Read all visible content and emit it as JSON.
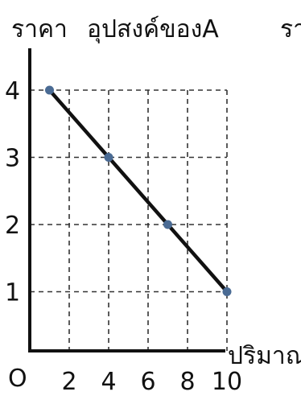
{
  "chart_data": {
    "type": "line",
    "title": "อุปสงค์ของA",
    "ylabel": "ราคา",
    "xlabel": "ปริมาณ",
    "origin_label": "O",
    "partial_label": "รา",
    "x_ticks": [
      2,
      4,
      6,
      8,
      10
    ],
    "y_ticks": [
      1,
      2,
      3,
      4
    ],
    "xlim": [
      0,
      10
    ],
    "ylim": [
      0,
      4
    ],
    "grid": true,
    "series": [
      {
        "x": [
          1,
          4,
          7,
          10
        ],
        "y": [
          4,
          3,
          2,
          1
        ],
        "color": "#111111",
        "marker_color": "#4a6b94"
      }
    ]
  }
}
